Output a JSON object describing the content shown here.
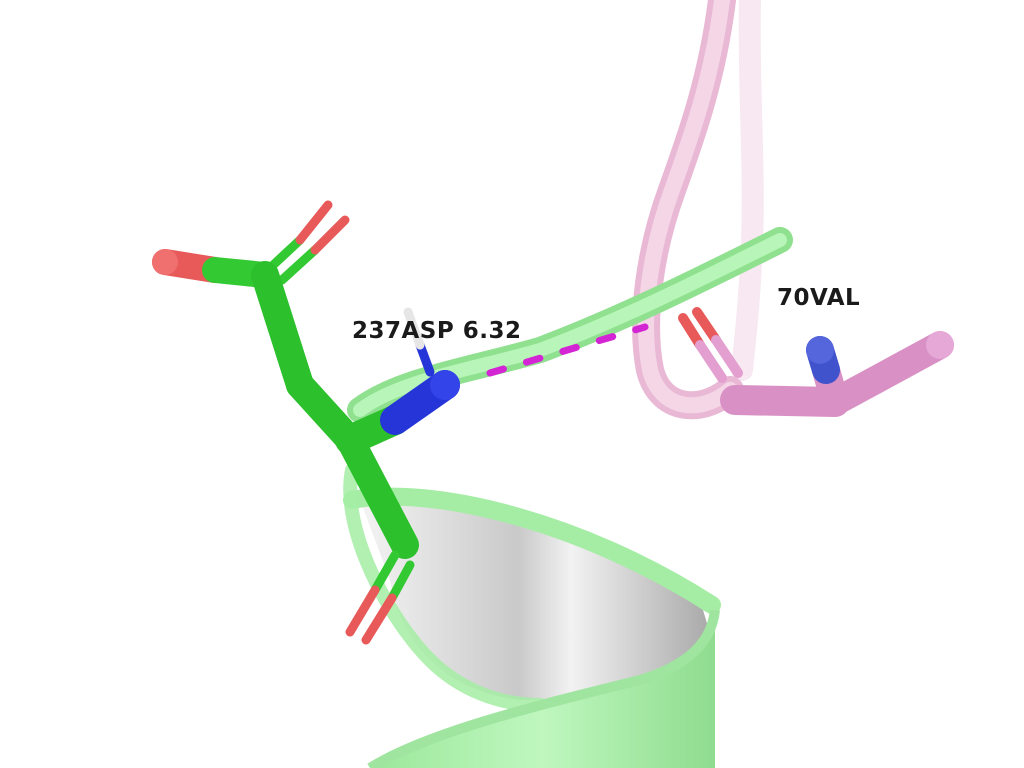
{
  "labels": {
    "residue_1": "237ASP 6.32",
    "residue_2": "70VAL"
  },
  "colors": {
    "background": "#ffffff",
    "chain_a_ribbon": "#9cf09c",
    "chain_b_ribbon": "#f2cde4",
    "carbon_asp": "#33cc33",
    "carbon_val": "#e39fd0",
    "oxygen": "#ee4444",
    "nitrogen": "#2233dd",
    "hydrogen": "#e6e6e6",
    "hbond_dash": "#dd22dd",
    "label_text": "#1a1a1a"
  },
  "legend_icons": [
    "protein-cartoon",
    "stick-residue",
    "hydrogen-bond"
  ]
}
